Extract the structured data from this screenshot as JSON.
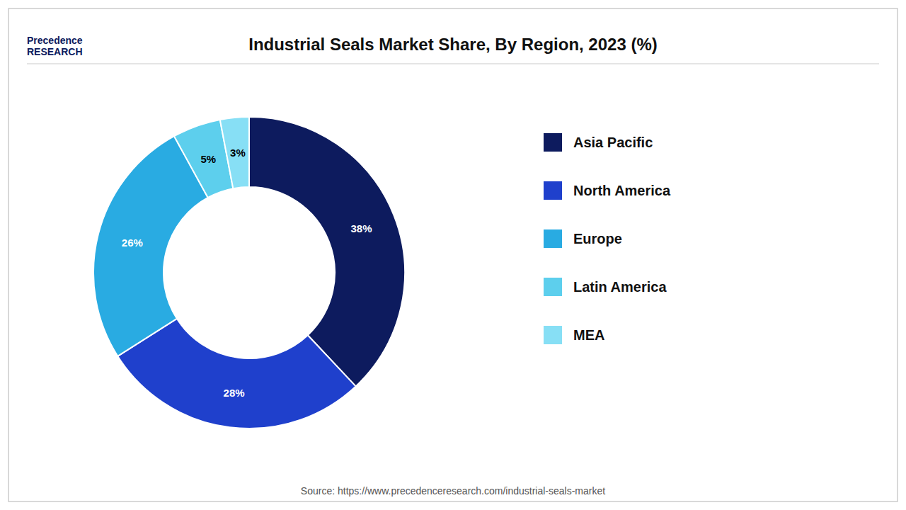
{
  "chart_data": {
    "type": "pie",
    "title": "Industrial Seals Market Share, By Region, 2023 (%)",
    "source": "Source: https://www.precedenceresearch.com/industrial-seals-market",
    "annotations": [
      "Precedence",
      "RESEARCH"
    ],
    "categories": [
      "Asia Pacific",
      "North America",
      "Europe",
      "Latin America",
      "MEA"
    ],
    "values": [
      38,
      28,
      26,
      5,
      3
    ],
    "value_labels": [
      "38%",
      "28%",
      "26%",
      "5%",
      "3%"
    ],
    "colors": [
      "#0d1b5e",
      "#1f40cc",
      "#29abe2",
      "#5dcfed",
      "#87dff5"
    ],
    "data_labels": true,
    "legend": "right"
  }
}
